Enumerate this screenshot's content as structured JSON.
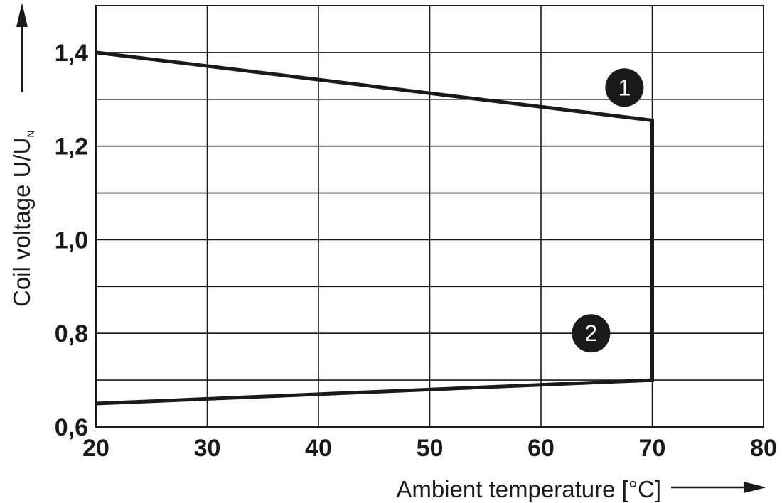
{
  "chart_data": {
    "type": "line",
    "xlabel": "Ambient temperature [°C]",
    "ylabel": "Coil voltage U/U",
    "ylabel_subscript": "N",
    "xlim": [
      20,
      80
    ],
    "ylim": [
      0.6,
      1.5
    ],
    "x_ticks": [
      20,
      30,
      40,
      50,
      60,
      70,
      80
    ],
    "x_tick_labels": [
      "20",
      "30",
      "40",
      "50",
      "60",
      "70",
      "80"
    ],
    "y_ticks": [
      0.6,
      0.8,
      1.0,
      1.2,
      1.4
    ],
    "y_tick_labels": [
      "0,6",
      "0,8",
      "1,0",
      "1,2",
      "1,4"
    ],
    "grid": true,
    "grid_x_step": 10,
    "grid_y_step": 0.1,
    "line_color": "#1a1a1a",
    "series": [
      {
        "x": [
          20,
          70,
          70,
          20
        ],
        "y": [
          1.4,
          1.255,
          0.7,
          0.65
        ]
      }
    ],
    "annotations": [
      {
        "text": "1",
        "x": 67.5,
        "y": 1.325
      },
      {
        "text": "2",
        "x": 64.5,
        "y": 0.8
      }
    ]
  }
}
